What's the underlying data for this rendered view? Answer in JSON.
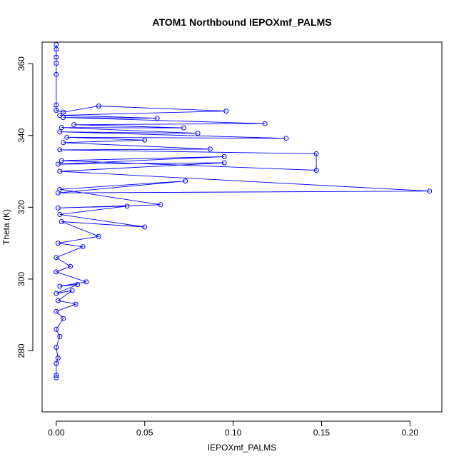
{
  "chart_data": {
    "type": "scatter",
    "title": "ATOM1 Northbound IEPOXmf_PALMS",
    "xlabel": "IEPOXmf_PALMS",
    "ylabel": "Theta (K)",
    "xlim": [
      -0.008,
      0.218
    ],
    "ylim": [
      263,
      366
    ],
    "xticks": [
      0.0,
      0.05,
      0.1,
      0.15,
      0.2
    ],
    "xtick_labels": [
      "0.00",
      "0.05",
      "0.10",
      "0.15",
      "0.20"
    ],
    "yticks": [
      280,
      300,
      320,
      340,
      360
    ],
    "ytick_labels": [
      "280",
      "300",
      "320",
      "340",
      "360"
    ],
    "color": "#0000ff",
    "marker": "open-circle",
    "connected": true,
    "grid": false,
    "series": [
      {
        "points": [
          [
            0.0,
            365.3
          ],
          [
            0.0,
            364.0
          ],
          [
            0.0,
            361.8
          ],
          [
            0.0,
            360.1
          ],
          [
            0.0,
            357.0
          ],
          [
            0.0,
            348.5
          ],
          [
            0.0,
            347.0
          ],
          [
            0.004,
            346.5
          ],
          [
            0.024,
            348.2
          ],
          [
            0.096,
            346.8
          ],
          [
            0.002,
            345.6
          ],
          [
            0.057,
            344.8
          ],
          [
            0.004,
            345.0
          ],
          [
            0.118,
            343.3
          ],
          [
            0.01,
            343.0
          ],
          [
            0.072,
            342.1
          ],
          [
            0.003,
            342.2
          ],
          [
            0.08,
            340.6
          ],
          [
            0.002,
            341.0
          ],
          [
            0.13,
            339.2
          ],
          [
            0.006,
            339.5
          ],
          [
            0.05,
            338.7
          ],
          [
            0.004,
            338.0
          ],
          [
            0.087,
            336.2
          ],
          [
            0.002,
            336.0
          ],
          [
            0.147,
            334.9
          ],
          [
            0.147,
            330.3
          ],
          [
            0.003,
            333.0
          ],
          [
            0.095,
            334.1
          ],
          [
            0.001,
            332.0
          ],
          [
            0.095,
            332.4
          ],
          [
            0.002,
            330.0
          ],
          [
            0.211,
            324.5
          ],
          [
            0.001,
            324.0
          ],
          [
            0.073,
            327.3
          ],
          [
            0.002,
            325.0
          ],
          [
            0.059,
            320.7
          ],
          [
            0.001,
            319.8
          ],
          [
            0.04,
            320.3
          ],
          [
            0.002,
            318.0
          ],
          [
            0.05,
            314.5
          ],
          [
            0.003,
            316.0
          ],
          [
            0.024,
            311.9
          ],
          [
            0.001,
            310.0
          ],
          [
            0.015,
            309.0
          ],
          [
            0.0,
            306.0
          ],
          [
            0.008,
            303.5
          ],
          [
            0.0,
            302.0
          ],
          [
            0.017,
            299.2
          ],
          [
            0.002,
            298.0
          ],
          [
            0.012,
            298.5
          ],
          [
            0.0,
            296.0
          ],
          [
            0.009,
            296.8
          ],
          [
            0.001,
            294.0
          ],
          [
            0.011,
            293.0
          ],
          [
            0.0,
            291.0
          ],
          [
            0.004,
            289.0
          ],
          [
            0.0,
            286.0
          ],
          [
            0.002,
            284.0
          ],
          [
            0.0,
            281.0
          ],
          [
            0.001,
            278.0
          ],
          [
            0.0,
            276.5
          ],
          [
            0.0,
            273.2
          ],
          [
            0.0,
            272.5
          ]
        ]
      }
    ]
  }
}
